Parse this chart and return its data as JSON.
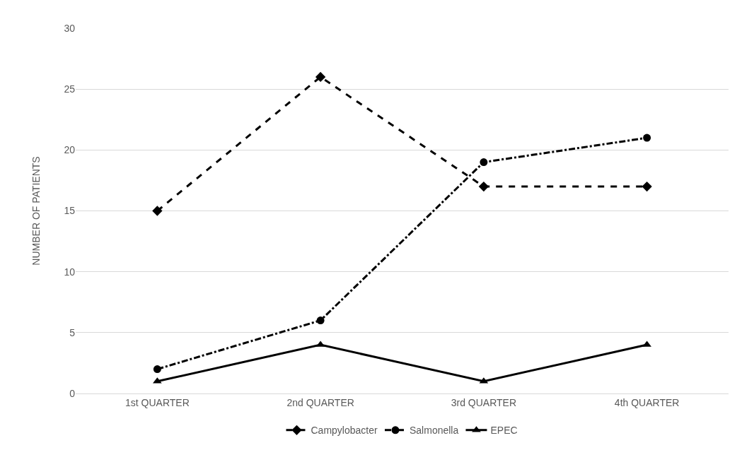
{
  "chart_data": {
    "type": "line",
    "ylabel": "NUMBER OF PATIENTS",
    "categories": [
      "1st QUARTER",
      "2nd QUARTER",
      "3rd QUARTER",
      "4th QUARTER"
    ],
    "series": [
      {
        "name": "Campylobacter",
        "color": "#000000",
        "values": [
          15,
          26,
          17,
          17
        ],
        "marker": "diamond",
        "line_style": "dashed"
      },
      {
        "name": "Salmonella",
        "color": "#000000",
        "values": [
          2,
          6,
          19,
          21
        ],
        "marker": "circle",
        "line_style": "dashdot"
      },
      {
        "name": "EPEC",
        "color": "#000000",
        "values": [
          1,
          4,
          1,
          4
        ],
        "marker": "triangle",
        "line_style": "solid"
      }
    ],
    "ylim": [
      0,
      30
    ],
    "yticks": [
      0,
      5,
      10,
      15,
      20,
      25,
      30
    ],
    "grid": "y",
    "legend": "bottom"
  }
}
